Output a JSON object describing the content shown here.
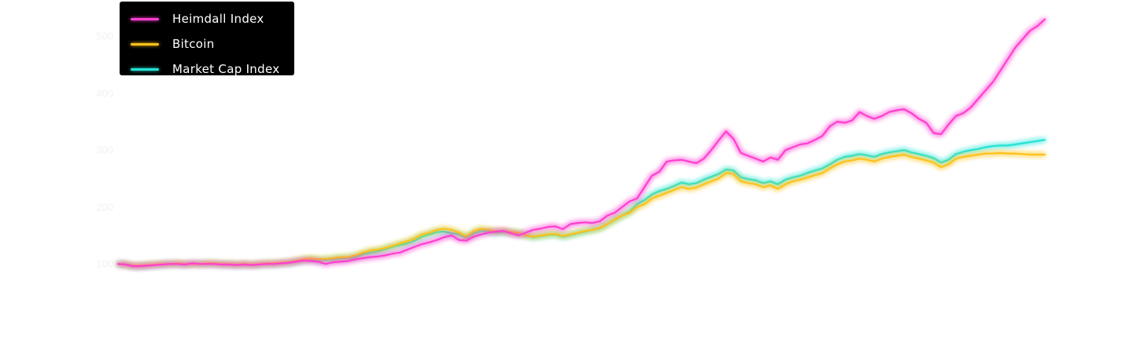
{
  "chart_data": {
    "type": "line",
    "y_tick_labels": [
      "500",
      "400",
      "300",
      "200",
      "100"
    ],
    "x_tick_labels": [
      "",
      "",
      "",
      "",
      "",
      "",
      "",
      "",
      "",
      ""
    ],
    "ylim": [
      70,
      550
    ],
    "grid": false,
    "legend_position": "top-left",
    "series": [
      {
        "name": "Heimdall Index",
        "color": "#ff3fd0",
        "values": [
          100,
          99,
          96,
          96,
          97,
          98,
          99,
          100,
          100,
          99,
          101,
          100,
          100,
          100,
          99,
          99,
          98,
          99,
          98,
          99,
          100,
          100,
          101,
          102,
          104,
          106,
          105,
          104,
          100,
          103,
          104,
          105,
          108,
          110,
          112,
          113,
          115,
          118,
          120,
          125,
          130,
          135,
          138,
          142,
          147,
          150,
          142,
          141,
          148,
          152,
          155,
          157,
          158,
          154,
          150,
          155,
          160,
          162,
          165,
          166,
          161,
          170,
          172,
          173,
          172,
          175,
          185,
          190,
          200,
          210,
          215,
          235,
          255,
          262,
          280,
          282,
          283,
          280,
          277,
          285,
          300,
          317,
          333,
          320,
          295,
          290,
          285,
          280,
          287,
          283,
          300,
          305,
          310,
          312,
          318,
          325,
          342,
          350,
          348,
          352,
          367,
          360,
          355,
          360,
          367,
          370,
          372,
          365,
          355,
          348,
          330,
          328,
          345,
          360,
          365,
          375,
          390,
          405,
          420,
          440,
          460,
          480,
          495,
          510,
          518,
          530
        ]
      },
      {
        "name": "Bitcoin",
        "color": "#ffc21a",
        "values": [
          100,
          99,
          97,
          97,
          98,
          99,
          100,
          100,
          101,
          100,
          100,
          100,
          101,
          101,
          100,
          100,
          99,
          100,
          99,
          100,
          101,
          101,
          102,
          103,
          105,
          108,
          110,
          108,
          109,
          110,
          112,
          112,
          115,
          120,
          124,
          125,
          128,
          132,
          136,
          140,
          145,
          152,
          155,
          160,
          162,
          160,
          155,
          148,
          158,
          162,
          160,
          157,
          158,
          156,
          155,
          150,
          148,
          150,
          152,
          153,
          149,
          152,
          155,
          158,
          160,
          163,
          170,
          178,
          185,
          190,
          200,
          205,
          215,
          220,
          225,
          230,
          235,
          232,
          234,
          240,
          245,
          250,
          260,
          258,
          245,
          242,
          240,
          235,
          238,
          232,
          240,
          245,
          248,
          252,
          256,
          260,
          268,
          275,
          280,
          282,
          285,
          283,
          280,
          285,
          288,
          290,
          292,
          288,
          285,
          282,
          278,
          270,
          275,
          285,
          288,
          290,
          292,
          294,
          294,
          295,
          294,
          294,
          293,
          292,
          292,
          292
        ]
      },
      {
        "name": "Market Cap Index",
        "color": "#22e3d6",
        "values": [
          100,
          99,
          96,
          96,
          97,
          98,
          99,
          100,
          100,
          99,
          100,
          100,
          100,
          100,
          99,
          99,
          98,
          99,
          98,
          99,
          100,
          100,
          101,
          102,
          104,
          106,
          108,
          106,
          107,
          108,
          110,
          110,
          112,
          117,
          120,
          122,
          126,
          130,
          133,
          136,
          141,
          148,
          152,
          156,
          157,
          154,
          152,
          146,
          154,
          158,
          157,
          155,
          156,
          155,
          154,
          150,
          147,
          149,
          151,
          152,
          148,
          151,
          154,
          157,
          160,
          163,
          170,
          178,
          185,
          192,
          205,
          212,
          222,
          228,
          232,
          237,
          243,
          240,
          242,
          248,
          253,
          258,
          266,
          264,
          252,
          249,
          247,
          242,
          245,
          240,
          248,
          252,
          255,
          260,
          264,
          268,
          275,
          283,
          288,
          290,
          293,
          291,
          288,
          293,
          296,
          298,
          300,
          296,
          293,
          290,
          286,
          278,
          283,
          293,
          297,
          300,
          302,
          305,
          307,
          308,
          308,
          310,
          312,
          314,
          316,
          318
        ]
      }
    ]
  }
}
